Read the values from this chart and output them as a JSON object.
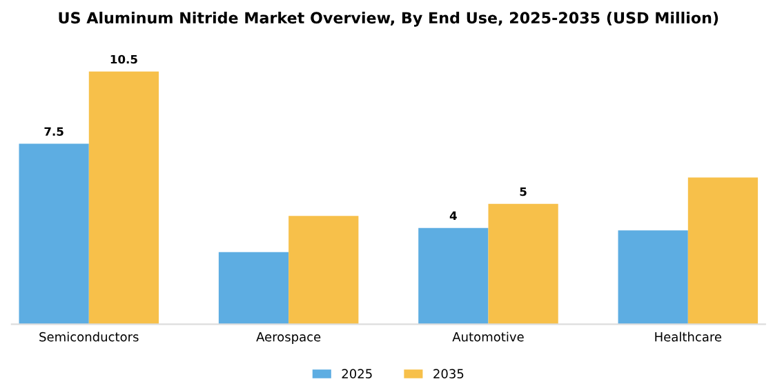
{
  "chart_data": {
    "type": "bar",
    "title": "US Aluminum Nitride Market Overview, By End Use, 2025-2035 (USD Million)",
    "categories": [
      "Semiconductors",
      "Aerospace",
      "Automotive",
      "Healthcare"
    ],
    "series": [
      {
        "name": "2025",
        "color": "#5dade2",
        "values": [
          7.5,
          3.0,
          4.0,
          3.9
        ],
        "value_labels": [
          "7.5",
          null,
          "4",
          null
        ]
      },
      {
        "name": "2035",
        "color": "#f7c04a",
        "values": [
          10.5,
          4.5,
          5.0,
          6.1
        ],
        "value_labels": [
          "10.5",
          null,
          "5",
          null
        ]
      }
    ],
    "legend": "bottom",
    "grid": false
  }
}
